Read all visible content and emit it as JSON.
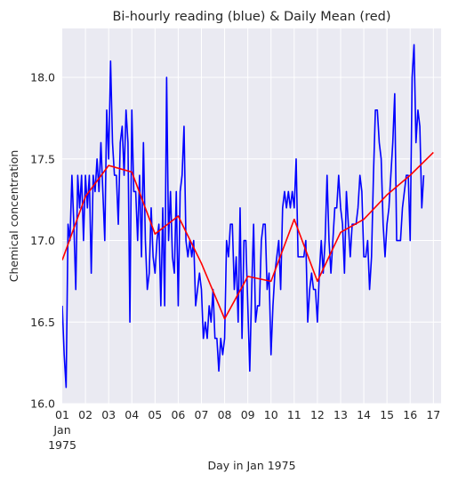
{
  "chart_data": {
    "type": "line",
    "title": "Bi-hourly reading (blue) & Daily Mean (red)",
    "xlabel": "Day in Jan 1975",
    "ylabel": "Chemical concentration",
    "xlim": [
      "1975-01-01T00:00",
      "1975-01-17T08:00"
    ],
    "ylim": [
      16.0,
      18.3
    ],
    "grid": true,
    "legend": "none",
    "y_ticks": [
      16.0,
      16.5,
      17.0,
      17.5,
      18.0
    ],
    "x_ticks": [
      {
        "date": "1975-01-01",
        "label": "01",
        "label2": "Jan",
        "label3": "1975"
      },
      {
        "date": "1975-01-02",
        "label": "02"
      },
      {
        "date": "1975-01-03",
        "label": "03"
      },
      {
        "date": "1975-01-04",
        "label": "04"
      },
      {
        "date": "1975-01-05",
        "label": "05"
      },
      {
        "date": "1975-01-06",
        "label": "06"
      },
      {
        "date": "1975-01-07",
        "label": "07"
      },
      {
        "date": "1975-01-08",
        "label": "08"
      },
      {
        "date": "1975-01-09",
        "label": "09"
      },
      {
        "date": "1975-01-10",
        "label": "10"
      },
      {
        "date": "1975-01-11",
        "label": "11"
      },
      {
        "date": "1975-01-12",
        "label": "12"
      },
      {
        "date": "1975-01-13",
        "label": "13"
      },
      {
        "date": "1975-01-14",
        "label": "14"
      },
      {
        "date": "1975-01-15",
        "label": "15"
      },
      {
        "date": "1975-01-16",
        "label": "16"
      },
      {
        "date": "1975-01-17",
        "label": "17"
      }
    ],
    "series": [
      {
        "description": "Bi-hourly reading",
        "color": "#0000ff",
        "interval_hours": 2,
        "start": "1975-01-01T00:00",
        "values": [
          16.6,
          16.3,
          16.1,
          17.1,
          17.0,
          17.4,
          17.1,
          16.7,
          17.4,
          17.2,
          17.4,
          17.0,
          17.4,
          17.2,
          17.4,
          16.8,
          17.4,
          17.3,
          17.5,
          17.3,
          17.6,
          17.3,
          17.0,
          17.8,
          17.5,
          18.1,
          17.6,
          17.4,
          17.4,
          17.1,
          17.6,
          17.7,
          17.4,
          17.8,
          17.6,
          16.5,
          17.8,
          17.3,
          17.3,
          17.0,
          17.4,
          16.9,
          17.6,
          17.0,
          16.7,
          16.8,
          17.2,
          16.9,
          16.8,
          17.0,
          17.1,
          16.6,
          17.2,
          16.6,
          18.0,
          17.0,
          17.3,
          16.9,
          16.8,
          17.3,
          16.6,
          17.3,
          17.4,
          17.7,
          17.0,
          16.9,
          17.0,
          16.9,
          17.0,
          16.6,
          16.7,
          16.8,
          16.7,
          16.4,
          16.5,
          16.4,
          16.6,
          16.5,
          16.7,
          16.4,
          16.4,
          16.2,
          16.4,
          16.3,
          16.4,
          17.0,
          16.9,
          17.1,
          17.1,
          16.7,
          16.9,
          16.5,
          17.2,
          16.4,
          17.0,
          17.0,
          16.6,
          16.2,
          16.7,
          17.1,
          16.5,
          16.6,
          16.6,
          17.0,
          17.1,
          17.1,
          16.7,
          16.8,
          16.3,
          16.6,
          16.8,
          16.9,
          17.0,
          16.7,
          17.2,
          17.3,
          17.2,
          17.3,
          17.2,
          17.3,
          17.2,
          17.5,
          16.9,
          16.9,
          16.9,
          16.9,
          17.0,
          16.5,
          16.7,
          16.8,
          16.7,
          16.7,
          16.5,
          16.8,
          17.0,
          16.8,
          17.0,
          17.4,
          17.0,
          16.8,
          17.0,
          17.2,
          17.2,
          17.4,
          17.2,
          17.1,
          16.8,
          17.3,
          17.1,
          16.9,
          17.1,
          17.1,
          17.1,
          17.2,
          17.4,
          17.3,
          16.9,
          16.9,
          17.0,
          16.7,
          16.9,
          17.4,
          17.8,
          17.8,
          17.6,
          17.5,
          17.1,
          16.9,
          17.1,
          17.2,
          17.4,
          17.6,
          17.9,
          17.0,
          17.0,
          17.0,
          17.2,
          17.3,
          17.4,
          17.4,
          17.0,
          18.0,
          18.2,
          17.6,
          17.8,
          17.7,
          17.2,
          17.4
        ]
      },
      {
        "description": "Daily Mean",
        "color": "#ff0000",
        "points": [
          [
            "1975-01-01T00:00",
            16.88
          ],
          [
            "1975-01-02T00:00",
            17.27
          ],
          [
            "1975-01-03T00:00",
            17.46
          ],
          [
            "1975-01-04T00:00",
            17.42
          ],
          [
            "1975-01-05T00:00",
            17.04
          ],
          [
            "1975-01-06T00:00",
            17.15
          ],
          [
            "1975-01-07T00:00",
            16.86
          ],
          [
            "1975-01-08T00:00",
            16.52
          ],
          [
            "1975-01-09T00:00",
            16.78
          ],
          [
            "1975-01-10T00:00",
            16.75
          ],
          [
            "1975-01-11T00:00",
            17.13
          ],
          [
            "1975-01-12T00:00",
            16.75
          ],
          [
            "1975-01-13T00:00",
            17.05
          ],
          [
            "1975-01-14T00:00",
            17.13
          ],
          [
            "1975-01-15T00:00",
            17.28
          ],
          [
            "1975-01-16T00:00",
            17.4
          ],
          [
            "1975-01-17T00:00",
            17.54
          ]
        ]
      }
    ]
  }
}
